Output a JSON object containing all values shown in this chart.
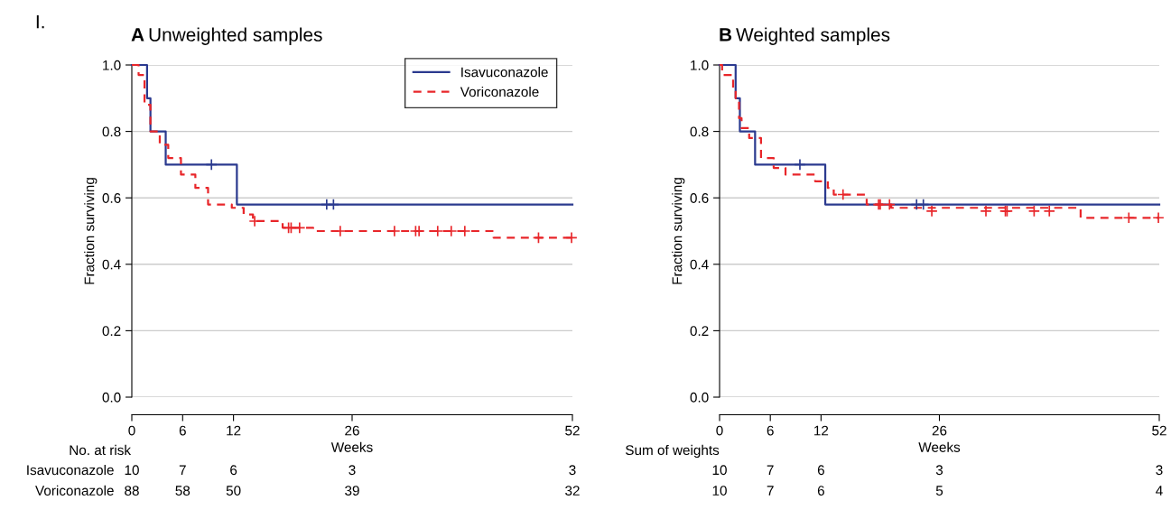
{
  "chart_data": [
    {
      "type": "step",
      "title": "A Unweighted samples",
      "xlabel": "Weeks",
      "ylabel": "Fraction surviving",
      "xlim": [
        0,
        52
      ],
      "ylim": [
        0,
        1
      ],
      "xticks": [
        0,
        6,
        12,
        26,
        52
      ],
      "yticks": [
        {
          "value": 0,
          "label": "0.0"
        },
        {
          "value": 0.2,
          "label": "0.2"
        },
        {
          "value": 0.4,
          "label": "0.4"
        },
        {
          "value": 0.6,
          "label": "0.6"
        },
        {
          "value": 0.8,
          "label": "0.8"
        },
        {
          "value": 1,
          "label": "1.0"
        }
      ],
      "grid": "y",
      "legend": "top right",
      "series": [
        {
          "name": "Isavuconazole",
          "color": "#2b3a8f",
          "line_style": "solid",
          "x": [
            0,
            1.8,
            2.2,
            4.0,
            12.4,
            52
          ],
          "values": [
            1.0,
            0.9,
            0.8,
            0.7,
            0.58,
            0.58
          ]
        },
        {
          "name": "Voriconazole",
          "color": "#e8262a",
          "line_style": "dashed",
          "x": [
            0,
            0.8,
            1.5,
            2.2,
            3.3,
            4.3,
            5.8,
            7.5,
            9,
            11.8,
            13.2,
            14.3,
            17.8,
            21.4,
            42.7,
            52
          ],
          "values": [
            1.0,
            0.97,
            0.88,
            0.8,
            0.76,
            0.72,
            0.67,
            0.63,
            0.58,
            0.57,
            0.55,
            0.53,
            0.51,
            0.5,
            0.48,
            0.48
          ]
        },
        {
          "type": "scatter",
          "marker": "cross",
          "color": "#2b3a8f",
          "x": [
            9.4,
            23.0,
            23.8
          ],
          "values": [
            0.7,
            0.58,
            0.58
          ]
        },
        {
          "type": "scatter",
          "marker": "cross",
          "color": "#e8262a",
          "x": [
            14.5,
            18.5,
            18.8,
            19.8,
            24.6,
            31.0,
            33.5,
            33.9,
            36.1,
            37.7,
            39.3,
            48.0,
            51.9
          ],
          "values": [
            0.53,
            0.51,
            0.51,
            0.51,
            0.5,
            0.5,
            0.5,
            0.5,
            0.5,
            0.5,
            0.5,
            0.48,
            0.48
          ]
        }
      ],
      "annotations": [
        "I.",
        "No. at risk",
        "Isavuconazole",
        "10",
        "7",
        "6",
        "3",
        "3",
        "Voriconazole",
        "88",
        "58",
        "50",
        "39",
        "32"
      ]
    },
    {
      "type": "step",
      "title": "B Weighted samples",
      "xlabel": "Weeks",
      "ylabel": "Fraction surviving",
      "xlim": [
        0,
        52
      ],
      "ylim": [
        0,
        1
      ],
      "xticks": [
        0,
        6,
        12,
        26,
        52
      ],
      "yticks": [
        {
          "value": 0,
          "label": "0.0"
        },
        {
          "value": 0.2,
          "label": "0.2"
        },
        {
          "value": 0.4,
          "label": "0.4"
        },
        {
          "value": 0.6,
          "label": "0.6"
        },
        {
          "value": 0.8,
          "label": "0.8"
        },
        {
          "value": 1,
          "label": "1.0"
        }
      ],
      "grid": "y",
      "series": [
        {
          "color": "#2b3a8f",
          "line_style": "solid",
          "x": [
            0,
            1.9,
            2.4,
            4.2,
            12.5,
            52
          ],
          "values": [
            1.0,
            0.9,
            0.8,
            0.7,
            0.58,
            0.58
          ]
        },
        {
          "color": "#e8262a",
          "line_style": "dashed",
          "x": [
            0,
            0.3,
            1.6,
            1.9,
            2.3,
            2.6,
            3.5,
            4.9,
            6.4,
            7.8,
            11.3,
            12.8,
            13.5,
            17.4,
            20.3,
            42.7,
            52
          ],
          "values": [
            1.0,
            0.97,
            0.93,
            0.9,
            0.84,
            0.81,
            0.78,
            0.72,
            0.69,
            0.67,
            0.65,
            0.63,
            0.61,
            0.58,
            0.57,
            0.54,
            0.54
          ]
        },
        {
          "type": "scatter",
          "marker": "cross",
          "color": "#2b3a8f",
          "x": [
            9.5,
            23.3,
            24.1
          ],
          "values": [
            0.7,
            0.58,
            0.58
          ]
        },
        {
          "type": "scatter",
          "marker": "cross",
          "color": "#e8262a",
          "x": [
            14.6,
            18.8,
            19.0,
            20.1,
            25.1,
            31.5,
            33.8,
            34.0,
            37.2,
            39.0,
            48.4,
            51.9
          ],
          "values": [
            0.61,
            0.58,
            0.58,
            0.58,
            0.56,
            0.56,
            0.56,
            0.56,
            0.56,
            0.56,
            0.54,
            0.54
          ]
        }
      ],
      "annotations": [
        "Sum of weights",
        "10",
        "7",
        "6",
        "3",
        "3",
        "10",
        "7",
        "6",
        "5",
        "4"
      ]
    }
  ]
}
